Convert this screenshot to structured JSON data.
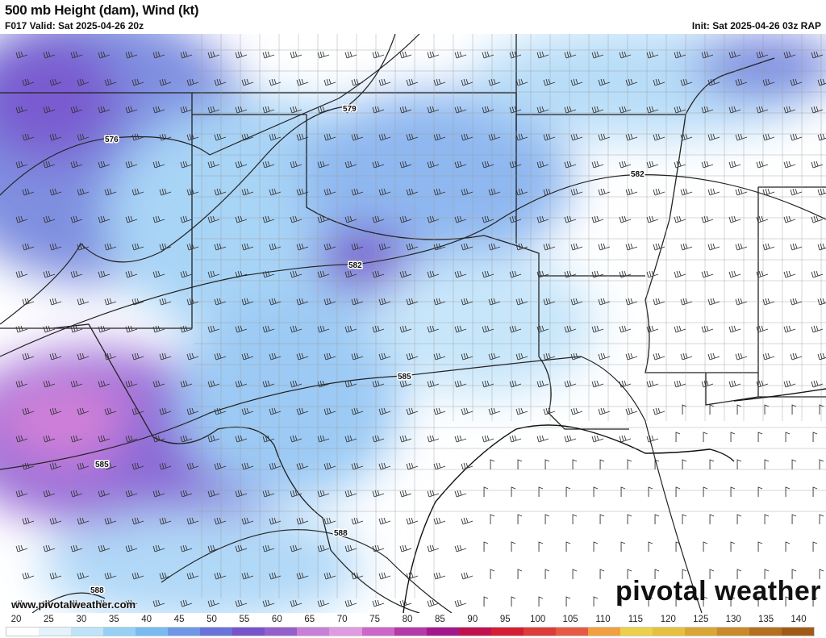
{
  "header": {
    "title": "500 mb Height (dam), Wind (kt)",
    "valid": "F017 Valid: Sat 2025-04-26 20z",
    "init": "Init: Sat 2025-04-26 03z RAP"
  },
  "map": {
    "contour_labels": [
      "576",
      "579",
      "582",
      "582",
      "585",
      "585",
      "588",
      "588"
    ],
    "website": "www.pivotalweather.com",
    "logo": "pivotal weather"
  },
  "colorbar": {
    "unit": "kt",
    "labels": [
      "20",
      "25",
      "30",
      "35",
      "40",
      "45",
      "50",
      "55",
      "60",
      "65",
      "70",
      "75",
      "80",
      "85",
      "90",
      "95",
      "100",
      "105",
      "110",
      "115",
      "120",
      "125",
      "130",
      "135",
      "140"
    ],
    "colors": [
      "#ffffff",
      "#e3f2fb",
      "#bfe3f8",
      "#96d0f5",
      "#79baf0",
      "#6f97e6",
      "#6b72d9",
      "#7754c9",
      "#9560cc",
      "#c77fd8",
      "#e09be0",
      "#cc66c8",
      "#b43aa8",
      "#a2188a",
      "#c01050",
      "#d41e33",
      "#de3b3b",
      "#e65a45",
      "#f0a040",
      "#ecd04c",
      "#e8c040",
      "#d9a535",
      "#c88a2a",
      "#b37020",
      "#a05a18"
    ]
  }
}
